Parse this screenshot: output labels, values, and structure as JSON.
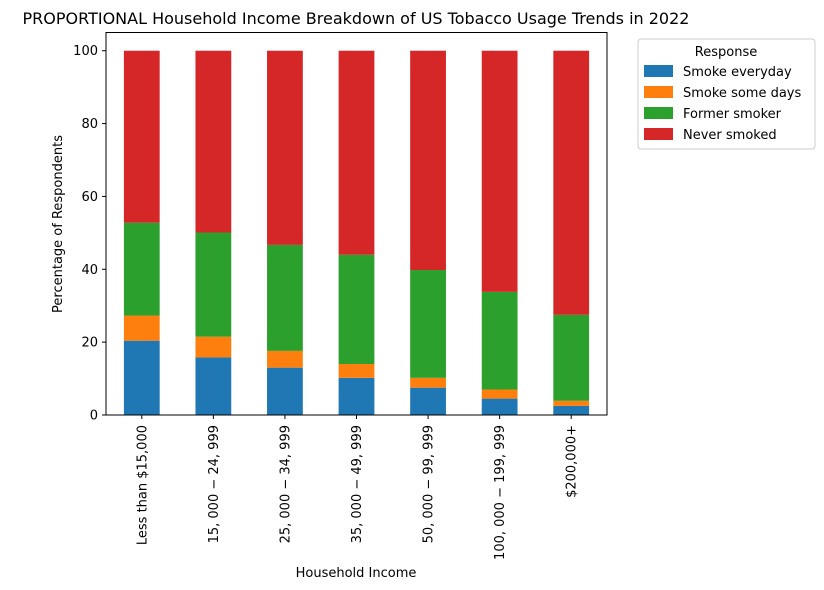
{
  "chart_data": {
    "type": "bar",
    "stacked": true,
    "title": "PROPORTIONAL Household Income Breakdown of US Tobacco Usage Trends in 2022",
    "xlabel": "Household Income",
    "ylabel": "Percentage of Respondents",
    "ylim": [
      0,
      105
    ],
    "yticks": [
      0,
      20,
      40,
      60,
      80,
      100
    ],
    "categories": [
      "Less than $15,000",
      "$15,000-$24,999",
      "$25,000-$34,999",
      "$35,000-$49,999",
      "$50,000-$99,999",
      "$100,000-$199,999",
      "$200,000+"
    ],
    "category_tick_labels": [
      "Less than $15,000",
      "15, 000 − 24, 999",
      "25, 000 − 34, 999",
      "35, 000 − 49, 999",
      "50, 000 − 99, 999",
      "100, 000 − 199, 999",
      "$200,000+"
    ],
    "legend_title": "Response",
    "legend_position": "outside upper right",
    "grid": false,
    "series": [
      {
        "name": "Smoke everyday",
        "color": "#1f77b4",
        "values": [
          20.4,
          15.8,
          13.0,
          10.2,
          7.5,
          4.5,
          2.5
        ]
      },
      {
        "name": "Smoke some days",
        "color": "#ff7f0e",
        "values": [
          6.9,
          5.7,
          4.6,
          3.8,
          2.7,
          2.5,
          1.4
        ]
      },
      {
        "name": "Former smoker",
        "color": "#2ca02c",
        "values": [
          25.5,
          28.6,
          29.1,
          30.0,
          29.6,
          26.8,
          23.6
        ]
      },
      {
        "name": "Never smoked",
        "color": "#d62728",
        "values": [
          47.2,
          49.9,
          53.3,
          56.0,
          60.2,
          66.2,
          72.5
        ]
      }
    ]
  }
}
